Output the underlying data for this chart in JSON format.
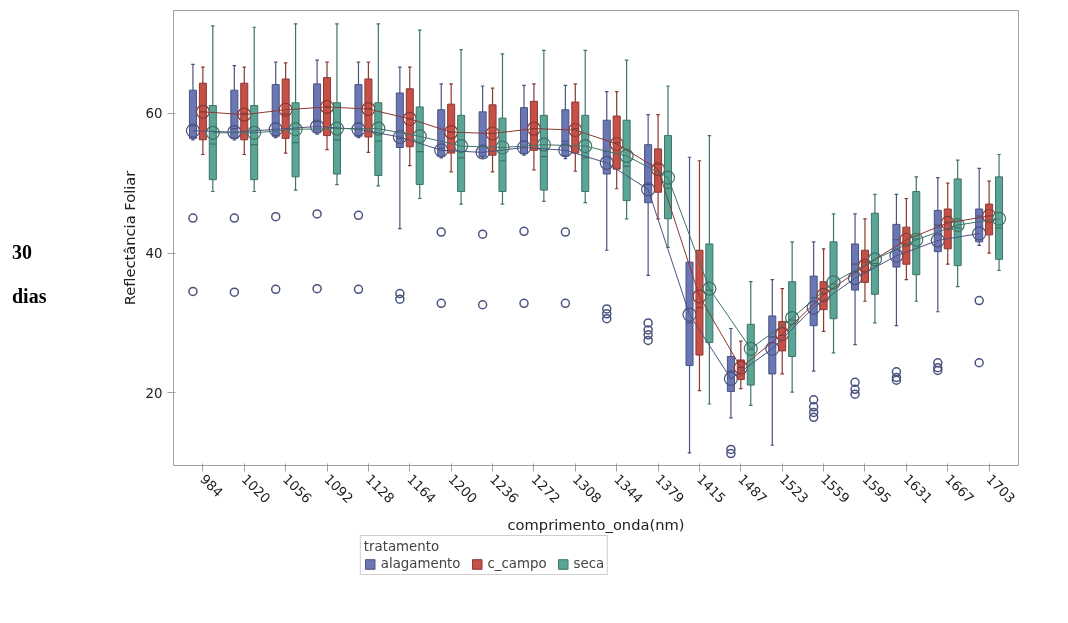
{
  "chart_data": {
    "type": "box",
    "xlabel": "comprimento_onda(nm)",
    "ylabel": "Reflectância Foliar",
    "legend_title": "tratamento",
    "annotations": [
      "30\ndias"
    ],
    "legend": "bottom",
    "grid": false,
    "marker": "circle",
    "line_style": "solid",
    "categories": [
      "984",
      "1020",
      "1056",
      "1092",
      "1128",
      "1164",
      "1200",
      "1236",
      "1272",
      "1308",
      "1344",
      "1379",
      "1415",
      "1487",
      "1523",
      "1559",
      "1595",
      "1631",
      "1667",
      "1703"
    ],
    "ylim": [
      9.6,
      74.7
    ],
    "yticks": [
      20,
      40,
      60
    ],
    "series": [
      {
        "name": "alagamento",
        "color": "#6b77b5",
        "boxes": [
          {
            "low": 56.2,
            "q1": 56.4,
            "median": 58.2,
            "q3": 63.3,
            "high": 67.0,
            "mean": 57.5,
            "outliers": [
              45.0,
              34.5
            ]
          },
          {
            "low": 56.2,
            "q1": 56.4,
            "median": 57.8,
            "q3": 63.3,
            "high": 66.8,
            "mean": 57.3,
            "outliers": [
              45.0,
              34.4
            ]
          },
          {
            "low": 56.5,
            "q1": 56.7,
            "median": 58.6,
            "q3": 64.1,
            "high": 67.3,
            "mean": 57.7,
            "outliers": [
              45.2,
              34.8
            ]
          },
          {
            "low": 57.0,
            "q1": 57.2,
            "median": 58.8,
            "q3": 64.2,
            "high": 67.6,
            "mean": 58.1,
            "outliers": [
              45.6,
              34.9
            ]
          },
          {
            "low": 56.5,
            "q1": 56.7,
            "median": 58.6,
            "q3": 64.1,
            "high": 67.3,
            "mean": 57.7,
            "outliers": [
              45.4,
              34.8
            ]
          },
          {
            "low": 43.5,
            "q1": 55.1,
            "median": 56.4,
            "q3": 62.9,
            "high": 66.6,
            "mean": 56.6,
            "outliers": [
              34.2,
              33.4
            ]
          },
          {
            "low": 53.6,
            "q1": 53.8,
            "median": 55.0,
            "q3": 60.5,
            "high": 64.2,
            "mean": 54.7,
            "outliers": [
              43.0,
              32.8
            ]
          },
          {
            "low": 53.6,
            "q1": 53.8,
            "median": 55.4,
            "q3": 60.2,
            "high": 63.9,
            "mean": 54.4,
            "outliers": [
              42.7,
              32.6
            ]
          },
          {
            "low": 54.0,
            "q1": 54.2,
            "median": 56.0,
            "q3": 60.8,
            "high": 64.0,
            "mean": 55.1,
            "outliers": [
              43.1,
              32.8
            ]
          },
          {
            "low": 53.5,
            "q1": 53.9,
            "median": 56.0,
            "q3": 60.5,
            "high": 64.0,
            "mean": 54.7,
            "outliers": [
              43.0,
              32.8
            ]
          },
          {
            "low": 40.4,
            "q1": 51.3,
            "median": 54.5,
            "q3": 59.0,
            "high": 63.1,
            "mean": 52.9,
            "outliers": [
              32.0,
              31.3,
              30.6
            ]
          },
          {
            "low": 36.8,
            "q1": 47.2,
            "median": 49.8,
            "q3": 55.5,
            "high": 59.8,
            "mean": 49.1,
            "outliers": [
              30.0,
              29.0,
              28.3,
              27.5
            ]
          },
          {
            "low": 11.4,
            "q1": 23.9,
            "median": 30.0,
            "q3": 38.7,
            "high": 53.7,
            "mean": 31.2
          },
          {
            "low": 16.4,
            "q1": 20.2,
            "median": 23.1,
            "q3": 25.2,
            "high": 29.2,
            "mean": 22.0,
            "outliers": [
              11.9,
              11.3
            ]
          },
          {
            "low": 12.5,
            "q1": 22.7,
            "median": 28.0,
            "q3": 31.0,
            "high": 36.2,
            "mean": 26.3
          },
          {
            "low": 23.1,
            "q1": 29.6,
            "median": 33.6,
            "q3": 36.7,
            "high": 41.6,
            "mean": 32.2,
            "outliers": [
              19.0,
              18.0,
              17.2,
              16.5
            ]
          },
          {
            "low": 26.9,
            "q1": 34.7,
            "median": 38.4,
            "q3": 41.3,
            "high": 45.6,
            "mean": 36.4,
            "outliers": [
              21.5,
              20.5,
              19.8
            ]
          },
          {
            "low": 29.6,
            "q1": 38.0,
            "median": 41.9,
            "q3": 44.1,
            "high": 48.4,
            "mean": 39.6,
            "outliers": [
              23.0,
              22.2,
              21.8
            ]
          },
          {
            "low": 31.6,
            "q1": 40.2,
            "median": 44.0,
            "q3": 46.1,
            "high": 50.8,
            "mean": 41.8,
            "outliers": [
              24.3,
              23.6,
              23.2
            ]
          },
          {
            "low": 41.1,
            "q1": 41.6,
            "median": 45.3,
            "q3": 46.3,
            "high": 52.1,
            "mean": 42.8,
            "outliers": [
              33.2,
              24.3
            ]
          }
        ]
      },
      {
        "name": "c_campo",
        "color": "#c65048",
        "boxes": [
          {
            "low": 54.1,
            "q1": 56.2,
            "median": 60.2,
            "q3": 64.3,
            "high": 66.6,
            "mean": 60.2
          },
          {
            "low": 54.1,
            "q1": 56.2,
            "median": 60.0,
            "q3": 64.3,
            "high": 66.6,
            "mean": 59.8
          },
          {
            "low": 54.3,
            "q1": 56.4,
            "median": 59.9,
            "q3": 64.9,
            "high": 67.2,
            "mean": 60.5
          },
          {
            "low": 54.8,
            "q1": 56.8,
            "median": 60.9,
            "q3": 65.1,
            "high": 67.3,
            "mean": 60.9
          },
          {
            "low": 54.4,
            "q1": 56.6,
            "median": 60.7,
            "q3": 64.9,
            "high": 67.3,
            "mean": 60.6
          },
          {
            "low": 52.5,
            "q1": 55.2,
            "median": 59.2,
            "q3": 63.5,
            "high": 66.6,
            "mean": 59.2
          },
          {
            "low": 51.6,
            "q1": 54.3,
            "median": 57.3,
            "q3": 61.3,
            "high": 64.2,
            "mean": 57.3
          },
          {
            "low": 51.6,
            "q1": 54.0,
            "median": 57.1,
            "q3": 61.2,
            "high": 63.6,
            "mean": 57.1
          },
          {
            "low": 51.9,
            "q1": 54.7,
            "median": 57.8,
            "q3": 61.7,
            "high": 64.2,
            "mean": 57.8
          },
          {
            "low": 51.7,
            "q1": 54.3,
            "median": 57.8,
            "q3": 61.6,
            "high": 64.2,
            "mean": 57.6
          },
          {
            "low": 49.2,
            "q1": 52.0,
            "median": 55.8,
            "q3": 59.6,
            "high": 63.1,
            "mean": 55.6
          },
          {
            "low": 44.9,
            "q1": 48.7,
            "median": 52.7,
            "q3": 54.9,
            "high": 59.8,
            "mean": 52.0
          },
          {
            "low": 20.3,
            "q1": 25.4,
            "median": 32.2,
            "q3": 40.4,
            "high": 53.2,
            "mean": 33.8
          },
          {
            "low": 20.6,
            "q1": 21.9,
            "median": 23.6,
            "q3": 24.7,
            "high": 27.4,
            "mean": 23.6
          },
          {
            "low": 22.7,
            "q1": 26.0,
            "median": 28.2,
            "q3": 30.2,
            "high": 34.9,
            "mean": 28.4
          },
          {
            "low": 28.8,
            "q1": 31.9,
            "median": 34.2,
            "q3": 35.9,
            "high": 40.6,
            "mean": 34.0
          },
          {
            "low": 33.1,
            "q1": 35.8,
            "median": 38.7,
            "q3": 40.4,
            "high": 44.9,
            "mean": 38.2
          },
          {
            "low": 36.2,
            "q1": 38.4,
            "median": 41.3,
            "q3": 43.7,
            "high": 47.8,
            "mean": 41.9
          },
          {
            "low": 38.4,
            "q1": 40.6,
            "median": 44.4,
            "q3": 46.3,
            "high": 50.0,
            "mean": 44.3
          },
          {
            "low": 40.0,
            "q1": 42.6,
            "median": 45.3,
            "q3": 47.0,
            "high": 50.3,
            "mean": 45.3
          }
        ]
      },
      {
        "name": "seca",
        "color": "#5aa595",
        "boxes": [
          {
            "low": 48.8,
            "q1": 50.5,
            "median": 55.6,
            "q3": 61.1,
            "high": 72.5,
            "mean": 57.2
          },
          {
            "low": 48.8,
            "q1": 50.5,
            "median": 55.5,
            "q3": 61.1,
            "high": 72.3,
            "mean": 57.2
          },
          {
            "low": 49.0,
            "q1": 50.9,
            "median": 55.8,
            "q3": 61.5,
            "high": 72.8,
            "mean": 57.7
          },
          {
            "low": 49.8,
            "q1": 51.3,
            "median": 56.2,
            "q3": 61.5,
            "high": 72.8,
            "mean": 57.8
          },
          {
            "low": 49.6,
            "q1": 51.1,
            "median": 56.0,
            "q3": 61.5,
            "high": 72.8,
            "mean": 57.8
          },
          {
            "low": 47.8,
            "q1": 49.8,
            "median": 54.5,
            "q3": 60.9,
            "high": 71.9,
            "mean": 56.7
          },
          {
            "low": 47.0,
            "q1": 48.8,
            "median": 53.6,
            "q3": 59.7,
            "high": 69.1,
            "mean": 55.3
          },
          {
            "low": 47.0,
            "q1": 48.8,
            "median": 53.2,
            "q3": 59.3,
            "high": 68.5,
            "mean": 55.1
          },
          {
            "low": 47.4,
            "q1": 49.0,
            "median": 53.8,
            "q3": 59.7,
            "high": 69.0,
            "mean": 55.5
          },
          {
            "low": 47.2,
            "q1": 48.8,
            "median": 53.6,
            "q3": 59.7,
            "high": 69.0,
            "mean": 55.3
          },
          {
            "low": 44.9,
            "q1": 47.5,
            "median": 52.4,
            "q3": 59.0,
            "high": 67.6,
            "mean": 53.9
          },
          {
            "low": 40.8,
            "q1": 44.9,
            "median": 49.3,
            "q3": 56.8,
            "high": 63.9,
            "mean": 50.8
          },
          {
            "low": 18.4,
            "q1": 27.2,
            "median": 34.7,
            "q3": 41.3,
            "high": 56.8,
            "mean": 34.9
          },
          {
            "low": 18.2,
            "q1": 21.1,
            "median": 26.2,
            "q3": 29.8,
            "high": 35.9,
            "mean": 26.3
          },
          {
            "low": 20.1,
            "q1": 25.2,
            "median": 30.4,
            "q3": 35.9,
            "high": 41.6,
            "mean": 30.7
          },
          {
            "low": 25.7,
            "q1": 30.6,
            "median": 35.6,
            "q3": 41.6,
            "high": 45.6,
            "mean": 35.8
          },
          {
            "low": 30.0,
            "q1": 34.1,
            "median": 38.5,
            "q3": 45.7,
            "high": 48.4,
            "mean": 39.1
          },
          {
            "low": 33.1,
            "q1": 36.9,
            "median": 42.0,
            "q3": 48.8,
            "high": 50.9,
            "mean": 41.9
          },
          {
            "low": 35.2,
            "q1": 38.2,
            "median": 43.6,
            "q3": 50.6,
            "high": 53.3,
            "mean": 44.0
          },
          {
            "low": 37.5,
            "q1": 39.1,
            "median": 43.6,
            "q3": 50.9,
            "high": 54.1,
            "mean": 44.9
          }
        ]
      },
      {
        "type": "line",
        "marker": "none",
        "color": "#4a537e",
        "values": [
          57.5,
          57.3,
          57.7,
          58.1,
          57.7,
          56.6,
          54.7,
          54.4,
          55.1,
          54.7,
          52.9,
          49.1,
          31.2,
          22.0,
          26.3,
          32.2,
          36.4,
          39.6,
          41.8,
          42.8
        ]
      },
      {
        "type": "line",
        "marker": "none",
        "color": "#8a3832",
        "values": [
          60.2,
          59.8,
          60.5,
          60.9,
          60.6,
          59.2,
          57.3,
          57.1,
          57.8,
          57.6,
          55.6,
          52.0,
          33.8,
          23.6,
          28.4,
          34.0,
          38.2,
          41.9,
          44.3,
          45.3
        ]
      },
      {
        "type": "line",
        "marker": "none",
        "color": "#3e7368",
        "values": [
          57.2,
          57.2,
          57.7,
          57.8,
          57.8,
          56.7,
          55.3,
          55.1,
          55.5,
          55.3,
          53.9,
          50.8,
          34.9,
          26.3,
          30.7,
          35.8,
          39.1,
          41.9,
          44.0,
          44.9
        ]
      }
    ]
  }
}
